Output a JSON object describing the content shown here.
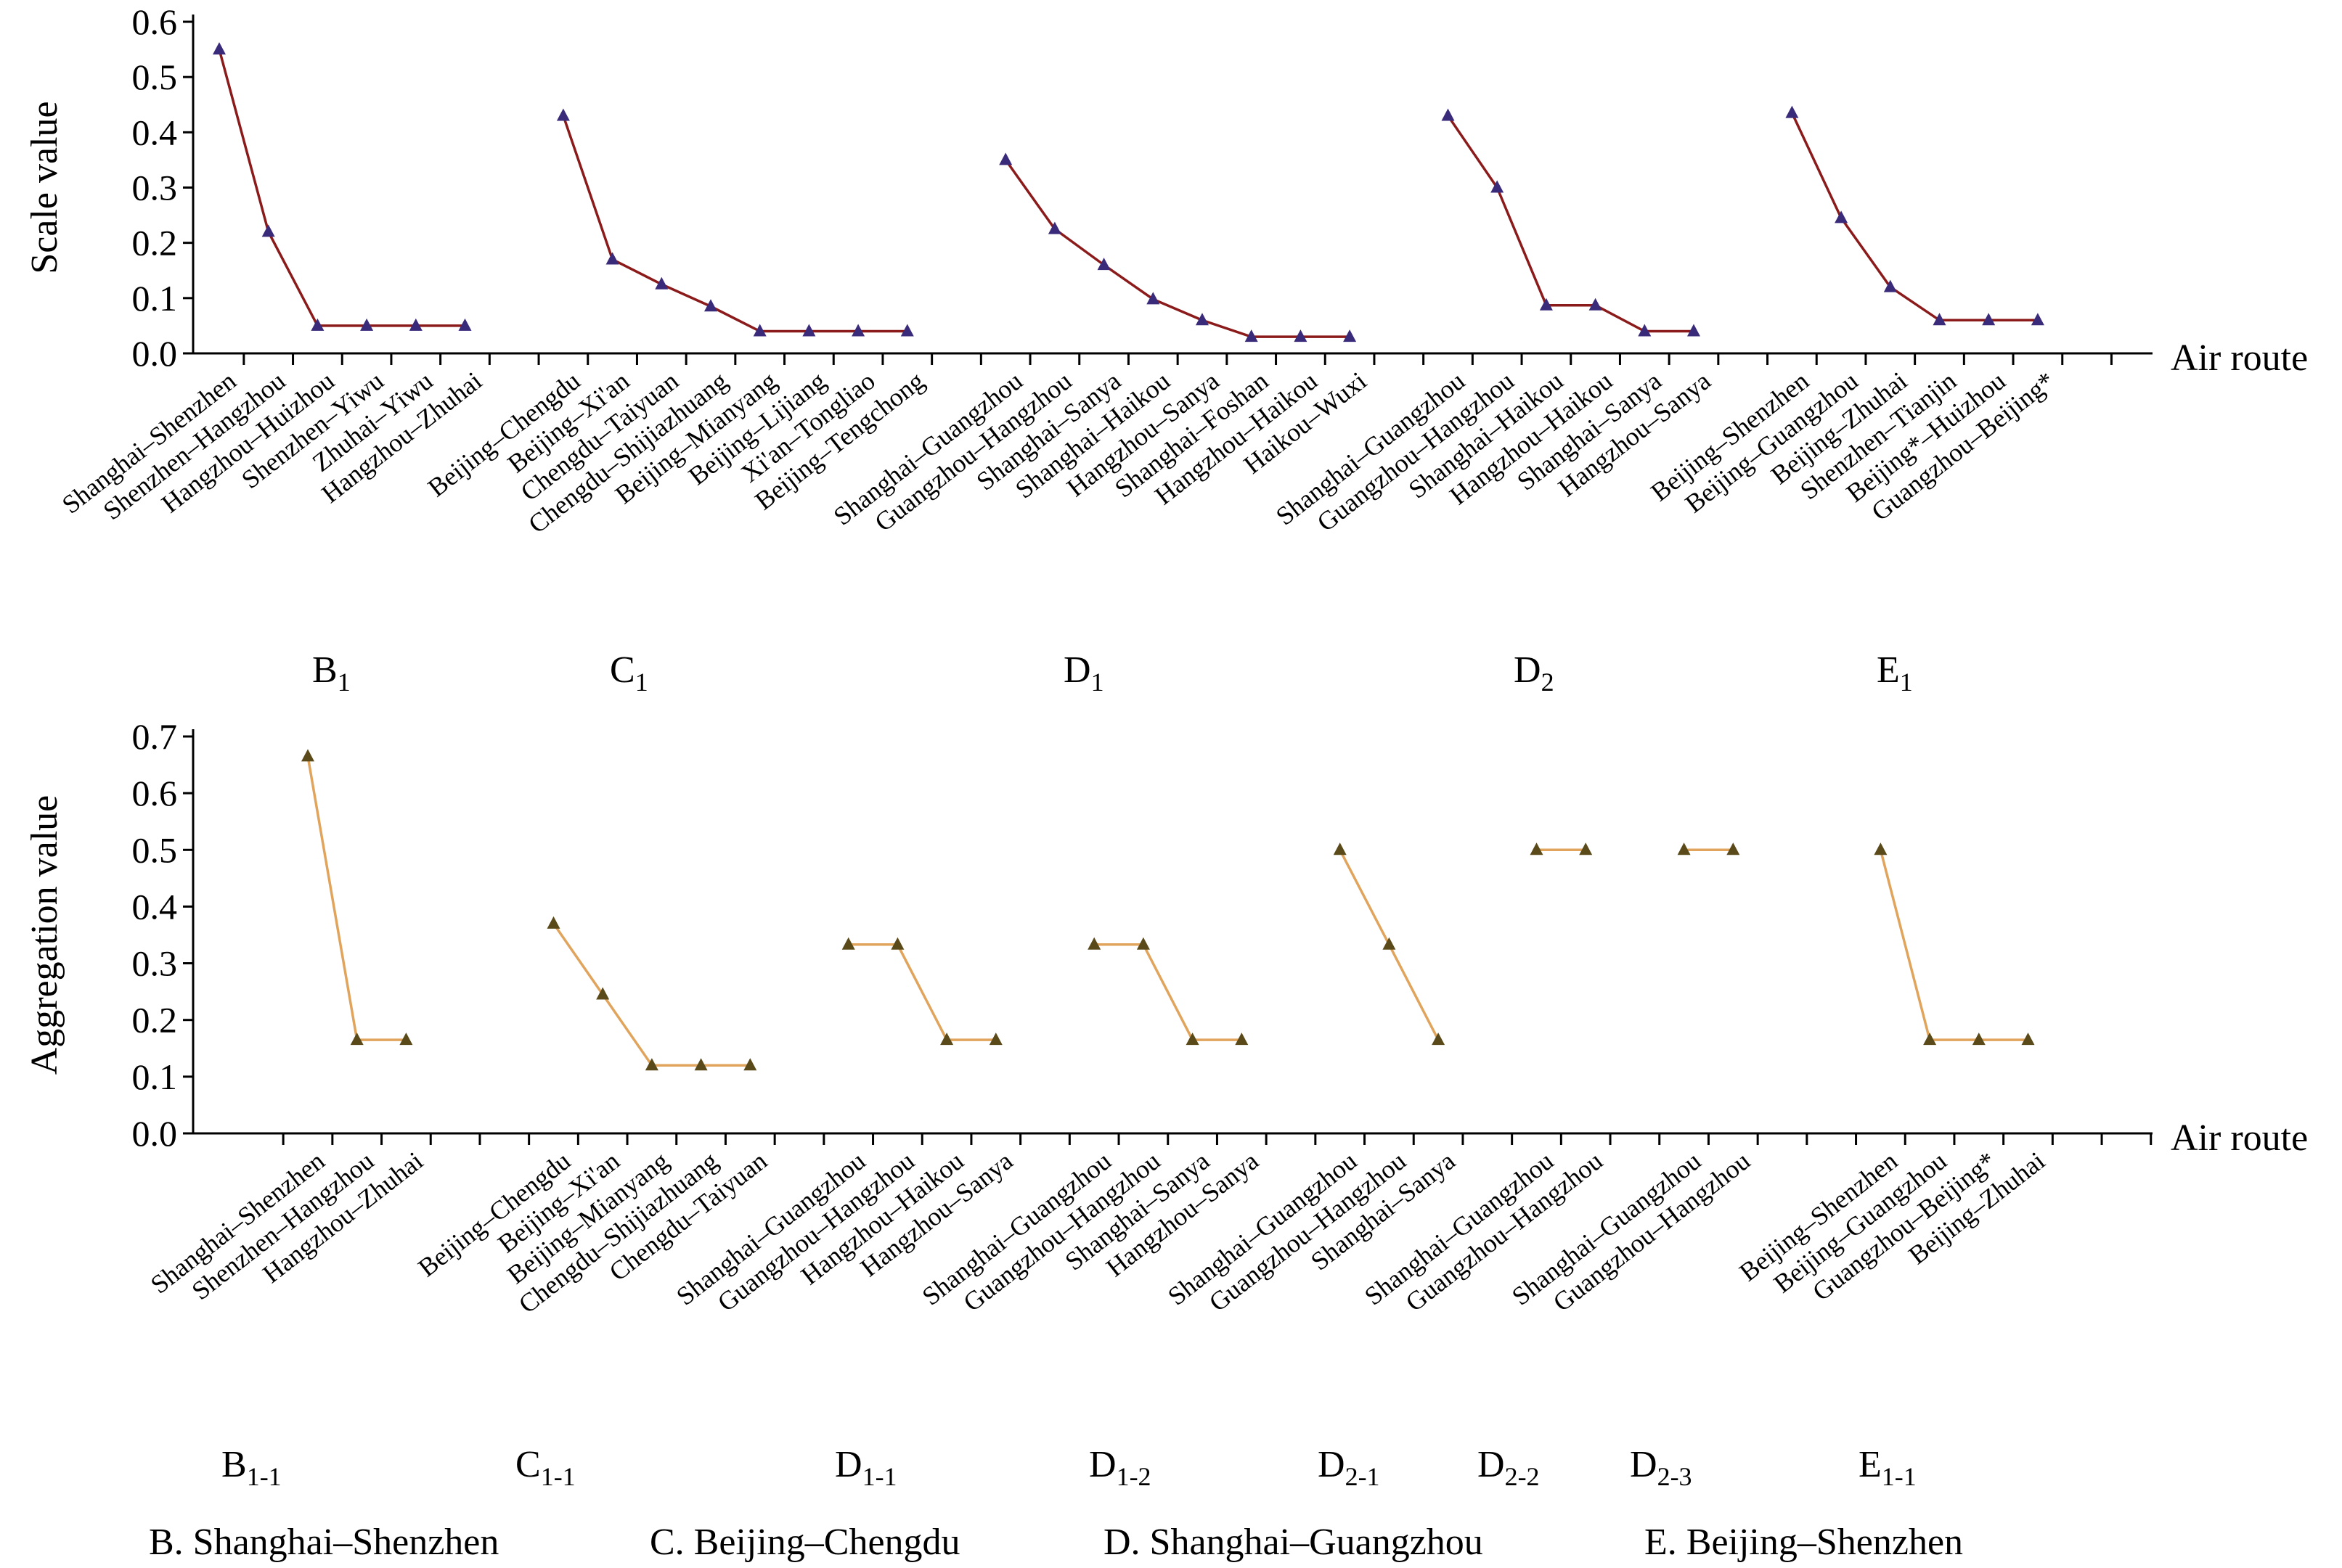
{
  "legend": [
    "B. Shanghai–Shenzhen",
    "C. Beijing–Chengdu",
    "D. Shanghai–Guangzhou",
    "E. Beijing–Shenzhen"
  ],
  "chart_data": [
    {
      "type": "line",
      "ylabel": "Scale value",
      "xlabel": "Air route",
      "ylim": [
        0,
        0.6
      ],
      "yticks": [
        "0.0",
        "0.1",
        "0.2",
        "0.3",
        "0.4",
        "0.5",
        "0.6"
      ],
      "line_color": "#8b1a1a",
      "marker_color": "#3a2a7a",
      "groups": [
        {
          "label": "B",
          "sub": "1",
          "categories": [
            "Shanghai–Shenzhen",
            "Shenzhen–Hangzhou",
            "Hangzhou–Huizhou",
            "Shenzhen–Yiwu",
            "Zhuhai–Yiwu",
            "Hangzhou–Zhuhai"
          ],
          "values": [
            0.55,
            0.22,
            0.05,
            0.05,
            0.05,
            0.05
          ]
        },
        {
          "label": "C",
          "sub": "1",
          "categories": [
            "Beijing–Chengdu",
            "Beijing–Xi'an",
            "Chengdu–Taiyuan",
            "Chengdu–Shijiazhuang",
            "Beijing–Mianyang",
            "Beijing–Lijiang",
            "Xi'an–Tongliao",
            "Beijing–Tengchong"
          ],
          "values": [
            0.43,
            0.17,
            0.125,
            0.085,
            0.04,
            0.04,
            0.04,
            0.04
          ]
        },
        {
          "label": "D",
          "sub": "1",
          "categories": [
            "Shanghai–Guangzhou",
            "Guangzhou–Hangzhou",
            "Shanghai–Sanya",
            "Shanghai–Haikou",
            "Hangzhou–Sanya",
            "Shanghai–Foshan",
            "Hangzhou–Haikou",
            "Haikou–Wuxi"
          ],
          "values": [
            0.35,
            0.225,
            0.16,
            0.098,
            0.06,
            0.03,
            0.03,
            0.03
          ]
        },
        {
          "label": "D",
          "sub": "2",
          "categories": [
            "Shanghai–Guangzhou",
            "Guangzhou–Hangzhou",
            "Shanghai–Haikou",
            "Hangzhou–Haikou",
            "Shanghai–Sanya",
            "Hangzhou–Sanya"
          ],
          "values": [
            0.43,
            0.3,
            0.087,
            0.087,
            0.04,
            0.04
          ]
        },
        {
          "label": "E",
          "sub": "1",
          "categories": [
            "Beijing–Shenzhen",
            "Beijing–Guangzhou",
            "Beijing–Zhuhai",
            "Shenzhen–Tianjin",
            "Beijing*–Huizhou",
            "Guangzhou–Beijing*"
          ],
          "values": [
            0.435,
            0.245,
            0.12,
            0.06,
            0.06,
            0.06
          ]
        }
      ]
    },
    {
      "type": "line",
      "ylabel": "Aggregation value",
      "xlabel": "Air route",
      "ylim": [
        0,
        0.7
      ],
      "yticks": [
        "0.0",
        "0.1",
        "0.2",
        "0.3",
        "0.4",
        "0.5",
        "0.6",
        "0.7"
      ],
      "line_color": "#e0a45c",
      "marker_color": "#5a4a1a",
      "groups": [
        {
          "label": "B",
          "sub": "1-1",
          "categories": [
            "Shanghai–Shenzhen",
            "Shenzhen–Hangzhou",
            "Hangzhou–Zhuhai"
          ],
          "values": [
            0.665,
            0.165,
            0.165
          ]
        },
        {
          "label": "C",
          "sub": "1-1",
          "categories": [
            "Beijing–Chengdu",
            "Beijing–Xi'an",
            "Beijing–Mianyang",
            "Chengdu–Shijiazhuang",
            "Chengdu–Taiyuan"
          ],
          "values": [
            0.37,
            0.245,
            0.12,
            0.12,
            0.12
          ]
        },
        {
          "label": "D",
          "sub": "1-1",
          "categories": [
            "Shanghai–Guangzhou",
            "Guangzhou–Hangzhou",
            "Hangzhou–Haikou",
            "Hangzhou–Sanya"
          ],
          "values": [
            0.333,
            0.333,
            0.165,
            0.165
          ]
        },
        {
          "label": "D",
          "sub": "1-2",
          "categories": [
            "Shanghai–Guangzhou",
            "Guangzhou–Hangzhou",
            "Shanghai–Sanya",
            "Hangzhou–Sanya"
          ],
          "values": [
            0.333,
            0.333,
            0.165,
            0.165
          ]
        },
        {
          "label": "D",
          "sub": "2-1",
          "categories": [
            "Shanghai–Guangzhou",
            "Guangzhou–Hangzhou",
            "Shanghai–Sanya"
          ],
          "values": [
            0.5,
            0.333,
            0.165
          ]
        },
        {
          "label": "D",
          "sub": "2-2",
          "categories": [
            "Shanghai–Guangzhou",
            "Guangzhou–Hangzhou"
          ],
          "values": [
            0.5,
            0.5
          ]
        },
        {
          "label": "D",
          "sub": "2-3",
          "categories": [
            "Shanghai–Guangzhou",
            "Guangzhou–Hangzhou"
          ],
          "values": [
            0.5,
            0.5
          ]
        },
        {
          "label": "E",
          "sub": "1-1",
          "categories": [
            "Beijing–Shenzhen",
            "Beijing–Guangzhou",
            "Guangzhou–Beijing*",
            "Beijing–Zhuhai"
          ],
          "values": [
            0.5,
            0.165,
            0.165,
            0.165
          ]
        }
      ]
    }
  ]
}
